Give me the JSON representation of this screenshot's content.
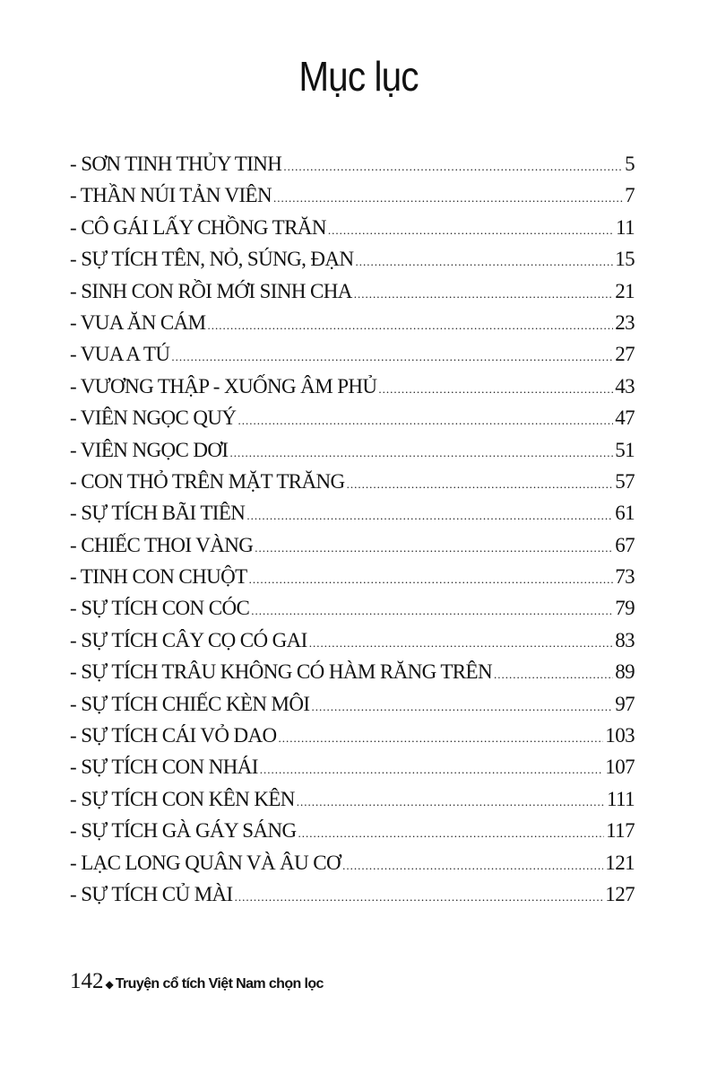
{
  "title": "Mục lục",
  "entries": [
    {
      "label": "- SƠN TINH THỦY TINH",
      "page": "5"
    },
    {
      "label": "- THẦN NÚI TẢN VIÊN",
      "page": "7"
    },
    {
      "label": "- CÔ GÁI LẤY CHỒNG TRĂN",
      "page": "11"
    },
    {
      "label": "- SỰ TÍCH TÊN, NỎ, SÚNG, ĐẠN",
      "page": "15"
    },
    {
      "label": "- SINH CON RỒI MỚI SINH CHA",
      "page": "21"
    },
    {
      "label": "- VUA ĂN CÁM",
      "page": "23"
    },
    {
      "label": "- VUA A TÚ",
      "page": "27"
    },
    {
      "label": "- VƯƠNG THẬP - XUỐNG ÂM PHỦ",
      "page": "43"
    },
    {
      "label": "- VIÊN NGỌC QUÝ",
      "page": "47"
    },
    {
      "label": "- VIÊN NGỌC DƠI",
      "page": "51"
    },
    {
      "label": "- CON THỎ TRÊN MẶT TRĂNG",
      "page": "57"
    },
    {
      "label": "- SỰ TÍCH BÃI TIÊN",
      "page": "61"
    },
    {
      "label": "- CHIẾC THOI VÀNG",
      "page": "67"
    },
    {
      "label": "- TINH CON CHUỘT",
      "page": "73"
    },
    {
      "label": "- SỰ TÍCH CON CÓC",
      "page": "79"
    },
    {
      "label": "- SỰ TÍCH CÂY CỌ CÓ GAI",
      "page": "83"
    },
    {
      "label": "- SỰ TÍCH TRÂU KHÔNG CÓ HÀM RĂNG TRÊN",
      "page": "89"
    },
    {
      "label": "- SỰ TÍCH CHIẾC KÈN MÔI",
      "page": "97"
    },
    {
      "label": "- SỰ TÍCH CÁI VỎ DAO",
      "page": "103"
    },
    {
      "label": "- SỰ TÍCH CON NHÁI",
      "page": "107"
    },
    {
      "label": "- SỰ TÍCH CON KÊN KÊN",
      "page": "111"
    },
    {
      "label": "- SỰ TÍCH GÀ GÁY SÁNG",
      "page": "117"
    },
    {
      "label": "- LẠC LONG QUÂN VÀ ÂU CƠ",
      "page": "121"
    },
    {
      "label": "- SỰ TÍCH CỦ MÀI",
      "page": "127"
    }
  ],
  "footer": {
    "page_number": "142",
    "separator_icon": "diamond-icon",
    "book_title": "Truyện cổ tích Việt Nam chọn lọc"
  }
}
